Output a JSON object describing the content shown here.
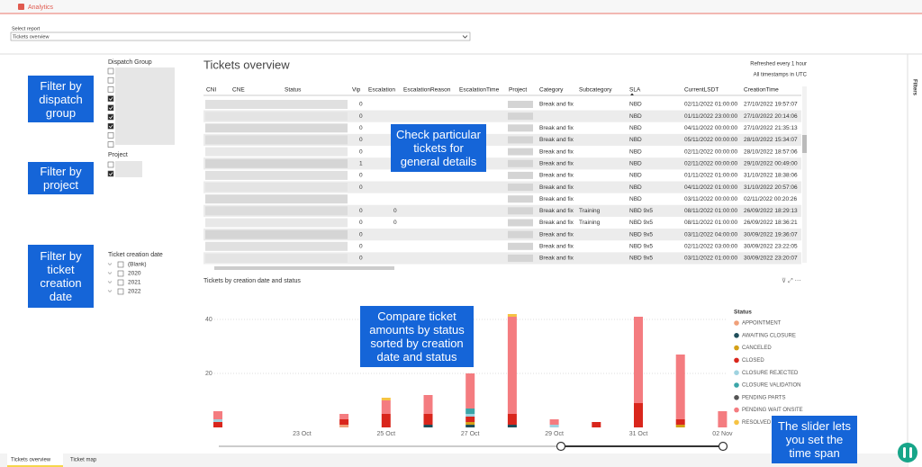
{
  "app": {
    "tab": "Analytics"
  },
  "report_select": {
    "label": "Select report",
    "value": "Tickets overview"
  },
  "header": {
    "title": "Tickets overview",
    "refresh": "Refreshed every 1 hour",
    "timezone": "All timestamps in UTC"
  },
  "filters": {
    "dispatch_group": {
      "title": "Dispatch Group",
      "checked": [
        false,
        false,
        false,
        true,
        true,
        true,
        true,
        false,
        false
      ]
    },
    "project": {
      "title": "Project",
      "checked": [
        false,
        true
      ]
    },
    "creation_date": {
      "title": "Ticket creation date",
      "options": [
        "(Blank)",
        "2020",
        "2021",
        "2022"
      ]
    }
  },
  "annotations": [
    "Filter by dispatch group",
    "Filter by project",
    "Filter by ticket creation date",
    "Check particular tickets for general details",
    "Compare ticket amounts by status sorted by creation date and status",
    "The slider lets you set the time span"
  ],
  "table": {
    "columns": [
      "CNI",
      "CNE",
      "Status",
      "Vip",
      "Escalation",
      "EscalationReason",
      "EscalationTime",
      "Project",
      "Category",
      "Subcategory",
      "SLA",
      "CurrentLSDT",
      "CreationTime"
    ],
    "rows": [
      [
        null,
        null,
        null,
        "0",
        null,
        null,
        null,
        null,
        "Break and fix",
        null,
        "NBD",
        "02/11/2022 01:00:00",
        "27/10/2022 19:57:07"
      ],
      [
        null,
        null,
        null,
        "0",
        null,
        null,
        null,
        null,
        null,
        null,
        "NBD",
        "01/11/2022 23:00:00",
        "27/10/2022 20:14:06"
      ],
      [
        null,
        null,
        null,
        "0",
        null,
        null,
        null,
        null,
        "Break and fix",
        null,
        "NBD",
        "04/11/2022 00:00:00",
        "27/10/2022 21:35:13"
      ],
      [
        null,
        null,
        null,
        "0",
        null,
        null,
        null,
        null,
        "Break and fix",
        null,
        "NBD",
        "05/11/2022 00:00:00",
        "28/10/2022 15:34:07"
      ],
      [
        null,
        null,
        null,
        "0",
        null,
        null,
        null,
        null,
        "Break and fix",
        null,
        "NBD",
        "02/11/2022 00:00:00",
        "28/10/2022 18:57:06"
      ],
      [
        null,
        null,
        null,
        "1",
        null,
        null,
        null,
        null,
        "Break and fix",
        null,
        "NBD",
        "02/11/2022 00:00:00",
        "29/10/2022 00:49:00"
      ],
      [
        null,
        null,
        null,
        "0",
        null,
        null,
        null,
        null,
        "Break and fix",
        null,
        "NBD",
        "01/11/2022 01:00:00",
        "31/10/2022 18:38:06"
      ],
      [
        null,
        null,
        null,
        "0",
        null,
        null,
        null,
        null,
        "Break and fix",
        null,
        "NBD",
        "04/11/2022 01:00:00",
        "31/10/2022 20:57:06"
      ],
      [
        null,
        null,
        null,
        null,
        null,
        null,
        null,
        null,
        "Break and fix",
        null,
        "NBD",
        "03/11/2022 00:00:00",
        "02/11/2022 00:20:26"
      ],
      [
        null,
        null,
        null,
        "0",
        "0",
        null,
        null,
        null,
        "Break and fix",
        "Training",
        "NBD 9x5",
        "08/11/2022 01:00:00",
        "26/09/2022 18:29:13"
      ],
      [
        null,
        null,
        null,
        "0",
        "0",
        null,
        null,
        null,
        "Break and fix",
        "Training",
        "NBD 9x5",
        "08/11/2022 01:00:00",
        "26/09/2022 18:36:21"
      ],
      [
        null,
        null,
        null,
        "0",
        null,
        null,
        null,
        null,
        "Break and fix",
        null,
        "NBD 9x5",
        "03/11/2022 04:00:00",
        "30/09/2022 19:36:07"
      ],
      [
        null,
        null,
        null,
        "0",
        null,
        null,
        null,
        null,
        "Break and fix",
        null,
        "NBD 9x5",
        "02/11/2022 03:00:00",
        "30/09/2022 23:22:05"
      ],
      [
        null,
        null,
        null,
        "0",
        null,
        null,
        null,
        null,
        "Break and fix",
        null,
        "NBD 9x5",
        "03/11/2022 01:00:00",
        "30/09/2022 23:20:07"
      ]
    ]
  },
  "chart_data": {
    "type": "bar",
    "stacked": true,
    "title": "Tickets by creation date and status",
    "categories": [
      null,
      null,
      "23 Oct",
      null,
      "25 Oct",
      null,
      "27 Oct",
      null,
      "29 Oct",
      null,
      "31 Oct",
      null,
      "02 Nov"
    ],
    "legend_title": "Status",
    "legend": "right",
    "ylim": [
      0,
      45
    ],
    "yticks": [
      20,
      40
    ],
    "grid": true,
    "series": [
      {
        "name": "APPOINTMENT",
        "color": "#f0a07a",
        "values": [
          0,
          0,
          0,
          1,
          0,
          0,
          0,
          0,
          0,
          0,
          0,
          0,
          0
        ]
      },
      {
        "name": "AWAITING CLOSURE",
        "color": "#1f4e5a",
        "values": [
          0,
          0,
          0,
          0,
          0,
          1,
          1,
          1,
          0,
          0,
          0,
          0,
          0
        ]
      },
      {
        "name": "CANCELED",
        "color": "#d4a017",
        "values": [
          0,
          0,
          0,
          0,
          0,
          0,
          1,
          0,
          0,
          0,
          0,
          1,
          0
        ]
      },
      {
        "name": "CLOSED",
        "color": "#d9261c",
        "values": [
          2,
          0,
          0,
          2,
          5,
          4,
          2,
          4,
          0,
          2,
          9,
          2,
          0
        ]
      },
      {
        "name": "CLOSURE REJECTED",
        "color": "#9fd3e0",
        "values": [
          1,
          0,
          0,
          0,
          0,
          0,
          1,
          0,
          1,
          0,
          0,
          0,
          0
        ]
      },
      {
        "name": "CLOSURE VALIDATION",
        "color": "#3aa5a8",
        "values": [
          0,
          0,
          0,
          0,
          0,
          0,
          2,
          0,
          0,
          0,
          0,
          0,
          0
        ]
      },
      {
        "name": "PENDING PARTS",
        "color": "#555555",
        "values": [
          0,
          0,
          0,
          0,
          0,
          0,
          0,
          0,
          0,
          0,
          0,
          0,
          0
        ]
      },
      {
        "name": "PENDING WAIT ONSITE",
        "color": "#f47c80",
        "values": [
          3,
          0,
          0,
          2,
          5,
          7,
          13,
          36,
          2,
          0,
          32,
          24,
          6
        ]
      },
      {
        "name": "RESOLVED",
        "color": "#f6c343",
        "values": [
          0,
          0,
          0,
          0,
          1,
          0,
          0,
          1,
          0,
          0,
          0,
          0,
          0
        ]
      }
    ]
  },
  "bottom_tabs": [
    "Tickets overview",
    "Ticket map"
  ],
  "filters_pane": "Filters"
}
